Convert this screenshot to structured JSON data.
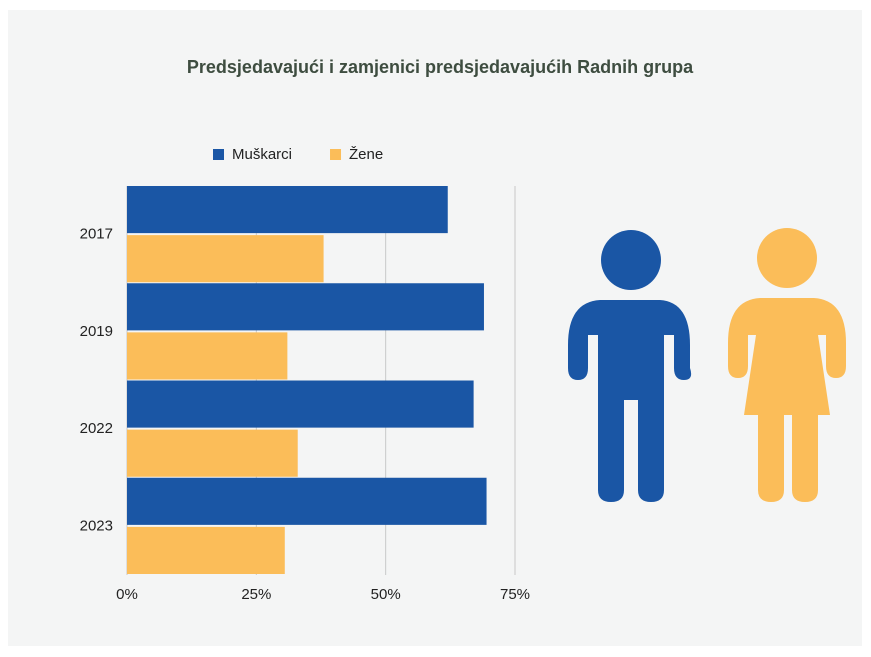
{
  "chart_data": {
    "type": "bar",
    "orientation": "horizontal",
    "title": "Predsjedavajući i zamjenici predsjedavajućih Radnih grupa",
    "categories": [
      "2017",
      "2019",
      "2022",
      "2023"
    ],
    "series": [
      {
        "name": "Muškarci",
        "color": "#1a56a5",
        "values": [
          62,
          69,
          67,
          69.5
        ]
      },
      {
        "name": "Žene",
        "color": "#fbbd59",
        "values": [
          38,
          31,
          33,
          30.5
        ]
      }
    ],
    "xlim": [
      0,
      75
    ],
    "xticks": [
      {
        "value": 0,
        "label": "0%"
      },
      {
        "value": 25,
        "label": "25%"
      },
      {
        "value": 50,
        "label": "50%"
      },
      {
        "value": 75,
        "label": "75%"
      }
    ],
    "grid": true,
    "legend": "top"
  }
}
